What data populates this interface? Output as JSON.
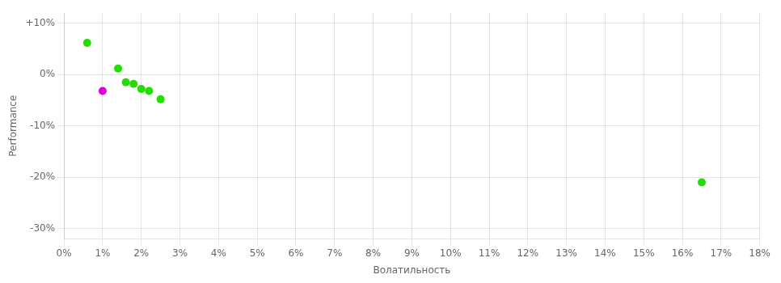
{
  "chart_data": {
    "type": "scatter",
    "xlabel": "Волатильность",
    "ylabel": "Performance",
    "xlim": [
      0,
      0.18
    ],
    "ylim": [
      -0.32,
      0.12
    ],
    "xticks": [
      {
        "value": 0.0,
        "label": "0%"
      },
      {
        "value": 0.01,
        "label": "1%"
      },
      {
        "value": 0.02,
        "label": "2%"
      },
      {
        "value": 0.03,
        "label": "3%"
      },
      {
        "value": 0.04,
        "label": "4%"
      },
      {
        "value": 0.05,
        "label": "5%"
      },
      {
        "value": 0.06,
        "label": "6%"
      },
      {
        "value": 0.07,
        "label": "7%"
      },
      {
        "value": 0.08,
        "label": "8%"
      },
      {
        "value": 0.09,
        "label": "9%"
      },
      {
        "value": 0.1,
        "label": "10%"
      },
      {
        "value": 0.11,
        "label": "11%"
      },
      {
        "value": 0.12,
        "label": "12%"
      },
      {
        "value": 0.13,
        "label": "13%"
      },
      {
        "value": 0.14,
        "label": "14%"
      },
      {
        "value": 0.15,
        "label": "15%"
      },
      {
        "value": 0.16,
        "label": "16%"
      },
      {
        "value": 0.17,
        "label": "17%"
      },
      {
        "value": 0.18,
        "label": "18%"
      }
    ],
    "yticks": [
      {
        "value": -0.3,
        "label": "-30%"
      },
      {
        "value": -0.2,
        "label": "-20%"
      },
      {
        "value": -0.1,
        "label": "-10%"
      },
      {
        "value": 0.0,
        "label": "0%"
      },
      {
        "value": 0.1,
        "label": "+10%"
      }
    ],
    "grid": true,
    "series": [
      {
        "color": "#22dd00",
        "x": [
          0.006,
          0.014,
          0.016,
          0.018,
          0.02,
          0.022,
          0.025,
          0.165
        ],
        "values": [
          0.062,
          0.012,
          -0.015,
          -0.018,
          -0.028,
          -0.032,
          -0.048,
          -0.21
        ]
      },
      {
        "color": "#dd00dd",
        "x": [
          0.01
        ],
        "values": [
          -0.032
        ]
      }
    ]
  }
}
